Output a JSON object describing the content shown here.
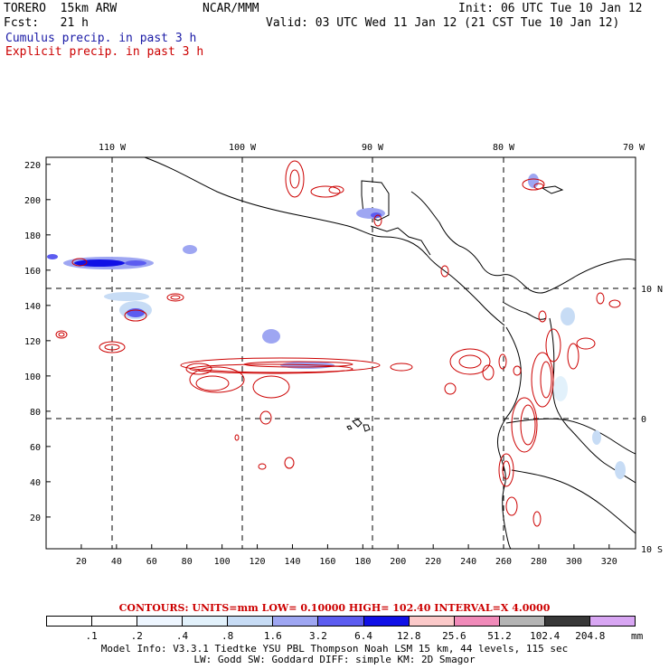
{
  "header": {
    "model": "TORERO  15km ARW",
    "center": "NCAR/MMM",
    "init": "Init: 06 UTC Tue 10 Jan 12",
    "fcst_label": "Fcst:   21 h",
    "valid": "Valid: 03 UTC Wed 11 Jan 12 (21 CST Tue 10 Jan 12)",
    "line_cumulus": "Cumulus precip. in past 3 h",
    "line_explicit": "Explicit precip. in past 3 h"
  },
  "map": {
    "top_labels": [
      "110 W",
      "100 W",
      "90 W",
      "80 W",
      "70 W"
    ],
    "right_labels": [
      "10 N",
      "0",
      "10 S"
    ],
    "x_ticks": [
      "20",
      "40",
      "60",
      "80",
      "100",
      "120",
      "140",
      "160",
      "180",
      "200",
      "220",
      "240",
      "260",
      "280",
      "300",
      "320"
    ],
    "y_ticks": [
      "20",
      "40",
      "60",
      "80",
      "100",
      "120",
      "140",
      "160",
      "180",
      "200",
      "220"
    ],
    "x_range": [
      0,
      335
    ],
    "y_range": [
      2,
      224
    ]
  },
  "legend": {
    "contours_text": "CONTOURS:  UNITS=mm  LOW= 0.10000      HIGH=  102.40      INTERVAL=X  4.0000",
    "labels": [
      ".1",
      ".2",
      ".4",
      ".8",
      "1.6",
      "3.2",
      "6.4",
      "12.8",
      "25.6",
      "51.2",
      "102.4",
      "204.8"
    ],
    "units": "mm",
    "colors": [
      "#ffffff",
      "#ffffff",
      "#eef6ff",
      "#e2f1fb",
      "#c7dcf5",
      "#9ea6f2",
      "#5c5cf0",
      "#1010e6",
      "#fbc9c9",
      "#f08ab9",
      "#b4b4b4",
      "#383838",
      "#d8a6f3"
    ]
  },
  "footer": {
    "line1": "Model Info: V3.3.1    Tiedtke YSU PBL  Thompson    Noah LSM  15 km,   44 levels,   115 sec",
    "line2": "LW: Godd SW: Goddard DIFF: simple KM: 2D Smagor"
  }
}
